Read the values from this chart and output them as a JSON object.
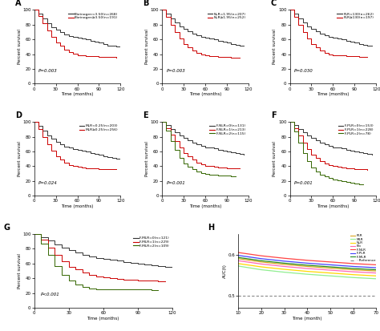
{
  "panel_labels": [
    "A",
    "B",
    "C",
    "D",
    "E",
    "F",
    "G",
    "H"
  ],
  "panels_ABC": {
    "A": {
      "legend": [
        "Fibrinogen<3.50(n=268)",
        "Fibrinogen≥3.50(n=191)"
      ],
      "colors": [
        "#333333",
        "#cc0000"
      ],
      "pval": "P=0.003",
      "group1_x": [
        0,
        6,
        12,
        18,
        24,
        30,
        36,
        42,
        48,
        54,
        60,
        66,
        72,
        78,
        84,
        90,
        96,
        102,
        108,
        114,
        120
      ],
      "group1_y": [
        100,
        95,
        88,
        82,
        77,
        73,
        70,
        67,
        65,
        63,
        62,
        61,
        60,
        58,
        57,
        56,
        54,
        52,
        51,
        50,
        49
      ],
      "group2_x": [
        0,
        6,
        12,
        18,
        24,
        30,
        36,
        42,
        48,
        54,
        60,
        66,
        72,
        78,
        84,
        90,
        96,
        102,
        108,
        114
      ],
      "group2_y": [
        100,
        92,
        82,
        72,
        63,
        56,
        51,
        46,
        43,
        41,
        39,
        38,
        37,
        37,
        37,
        36,
        36,
        36,
        36,
        35
      ]
    },
    "B": {
      "legend": [
        "NLR<1.95(n=207)",
        "NLR≥1.95(n=252)"
      ],
      "colors": [
        "#333333",
        "#cc0000"
      ],
      "pval": "P=0.003",
      "group1_x": [
        0,
        6,
        12,
        18,
        24,
        30,
        36,
        42,
        48,
        54,
        60,
        66,
        72,
        78,
        84,
        90,
        96,
        102,
        108,
        114
      ],
      "group1_y": [
        100,
        95,
        88,
        83,
        78,
        74,
        71,
        68,
        66,
        64,
        62,
        61,
        60,
        58,
        57,
        56,
        54,
        53,
        52,
        51
      ],
      "group2_x": [
        0,
        6,
        12,
        18,
        24,
        30,
        36,
        42,
        48,
        54,
        60,
        66,
        72,
        78,
        84,
        90,
        96,
        102,
        108
      ],
      "group2_y": [
        100,
        91,
        80,
        70,
        61,
        54,
        49,
        45,
        42,
        40,
        38,
        37,
        37,
        36,
        36,
        36,
        35,
        35,
        35
      ]
    },
    "C": {
      "legend": [
        "PLR<130(n=262)",
        "PLR≥130(n=197)"
      ],
      "colors": [
        "#333333",
        "#cc0000"
      ],
      "pval": "P=0.030",
      "group1_x": [
        0,
        6,
        12,
        18,
        24,
        30,
        36,
        42,
        48,
        54,
        60,
        66,
        72,
        78,
        84,
        90,
        96,
        102,
        108,
        114
      ],
      "group1_y": [
        100,
        95,
        88,
        83,
        78,
        74,
        71,
        68,
        66,
        64,
        62,
        61,
        60,
        58,
        57,
        56,
        54,
        53,
        52,
        51
      ],
      "group2_x": [
        0,
        6,
        12,
        18,
        24,
        30,
        36,
        42,
        48,
        54,
        60,
        66,
        72,
        78,
        84,
        90,
        96,
        102,
        108
      ],
      "group2_y": [
        100,
        91,
        80,
        70,
        61,
        54,
        49,
        45,
        42,
        40,
        39,
        38,
        38,
        37,
        37,
        37,
        36,
        36,
        36
      ]
    }
  },
  "panels_DEF": {
    "D": {
      "legend": [
        "MLR<0.25(n=203)",
        "MLR≥0.25(n=256)"
      ],
      "colors": [
        "#333333",
        "#cc0000"
      ],
      "pval": "P=0.024",
      "group1_x": [
        0,
        6,
        12,
        18,
        24,
        30,
        36,
        42,
        48,
        54,
        60,
        66,
        72,
        78,
        84,
        90,
        96,
        102,
        108,
        114,
        120
      ],
      "group1_y": [
        100,
        95,
        88,
        82,
        77,
        73,
        70,
        67,
        65,
        63,
        62,
        61,
        60,
        58,
        57,
        56,
        54,
        52,
        51,
        50,
        50
      ],
      "group2_x": [
        0,
        6,
        12,
        18,
        24,
        30,
        36,
        42,
        48,
        54,
        60,
        66,
        72,
        78,
        84,
        90,
        96,
        102,
        108,
        114
      ],
      "group2_y": [
        100,
        91,
        80,
        70,
        61,
        54,
        49,
        45,
        42,
        40,
        39,
        38,
        37,
        37,
        37,
        36,
        36,
        36,
        36,
        36
      ]
    },
    "E": {
      "legend": [
        "F-NLR=0(n=131)",
        "F-NLR=1(n=213)",
        "F-NLR=2(n=115)"
      ],
      "colors": [
        "#333333",
        "#cc0000",
        "#336600"
      ],
      "pval": "P=0.001",
      "group1_x": [
        0,
        6,
        12,
        18,
        24,
        30,
        36,
        42,
        48,
        54,
        60,
        66,
        72,
        78,
        84,
        90,
        96,
        102,
        108,
        114
      ],
      "group1_y": [
        100,
        96,
        91,
        86,
        82,
        78,
        75,
        72,
        70,
        68,
        66,
        65,
        64,
        62,
        61,
        60,
        59,
        58,
        57,
        56
      ],
      "group2_x": [
        0,
        6,
        12,
        18,
        24,
        30,
        36,
        42,
        48,
        54,
        60,
        66,
        72,
        78,
        84,
        90,
        96,
        102,
        108
      ],
      "group2_y": [
        100,
        92,
        83,
        74,
        65,
        58,
        53,
        49,
        45,
        43,
        41,
        40,
        39,
        38,
        38,
        37,
        37,
        37,
        37
      ],
      "group3_x": [
        0,
        6,
        12,
        18,
        24,
        30,
        36,
        42,
        48,
        54,
        60,
        66,
        72,
        78,
        84,
        90,
        96,
        102
      ],
      "group3_y": [
        100,
        88,
        74,
        62,
        51,
        44,
        39,
        36,
        33,
        31,
        30,
        29,
        28,
        27,
        27,
        27,
        26,
        26
      ]
    },
    "F": {
      "legend": [
        "F-PLR=0(n=153)",
        "F-PLR=1(n=228)",
        "F-PLR=2(n=78)"
      ],
      "colors": [
        "#333333",
        "#cc0000",
        "#336600"
      ],
      "pval": "P=0.001",
      "group1_x": [
        0,
        6,
        12,
        18,
        24,
        30,
        36,
        42,
        48,
        54,
        60,
        66,
        72,
        78,
        84,
        90,
        96,
        102,
        108,
        114
      ],
      "group1_y": [
        100,
        96,
        91,
        86,
        82,
        78,
        75,
        72,
        70,
        68,
        66,
        65,
        64,
        62,
        61,
        60,
        59,
        58,
        57,
        56
      ],
      "group2_x": [
        0,
        6,
        12,
        18,
        24,
        30,
        36,
        42,
        48,
        54,
        60,
        66,
        72,
        78,
        84,
        90,
        96,
        102,
        108
      ],
      "group2_y": [
        100,
        92,
        82,
        72,
        63,
        56,
        51,
        47,
        44,
        42,
        40,
        39,
        38,
        37,
        37,
        36,
        36,
        36,
        35
      ],
      "group3_x": [
        0,
        6,
        12,
        18,
        24,
        30,
        36,
        42,
        48,
        54,
        60,
        66,
        72,
        78,
        84,
        90,
        96,
        102
      ],
      "group3_y": [
        100,
        87,
        72,
        58,
        47,
        38,
        33,
        29,
        26,
        24,
        22,
        21,
        20,
        19,
        18,
        17,
        16,
        15
      ]
    }
  },
  "panel_G": {
    "legend": [
      "F-MLR=0(n=121)",
      "F-MLR=1(n=229)",
      "F-MLR=2(n=109)"
    ],
    "colors": [
      "#333333",
      "#cc0000",
      "#336600"
    ],
    "pval": "P<0.001",
    "group1_x": [
      0,
      6,
      12,
      18,
      24,
      30,
      36,
      42,
      48,
      54,
      60,
      66,
      72,
      78,
      84,
      90,
      96,
      102,
      108,
      114,
      120
    ],
    "group1_y": [
      100,
      96,
      91,
      86,
      82,
      78,
      75,
      72,
      70,
      68,
      66,
      65,
      64,
      62,
      61,
      60,
      59,
      58,
      57,
      56,
      55
    ],
    "group2_x": [
      0,
      6,
      12,
      18,
      24,
      30,
      36,
      42,
      48,
      54,
      60,
      66,
      72,
      78,
      84,
      90,
      96,
      102,
      108,
      114
    ],
    "group2_y": [
      100,
      92,
      82,
      72,
      63,
      56,
      52,
      48,
      45,
      43,
      41,
      40,
      39,
      38,
      38,
      37,
      37,
      37,
      36,
      36
    ],
    "group3_x": [
      0,
      6,
      12,
      18,
      24,
      30,
      36,
      42,
      48,
      54,
      60,
      66,
      72,
      78,
      84,
      90,
      96,
      102,
      108
    ],
    "group3_y": [
      100,
      87,
      72,
      57,
      45,
      37,
      32,
      28,
      26,
      25,
      25,
      25,
      25,
      25,
      25,
      25,
      25,
      24,
      24
    ]
  },
  "panel_H": {
    "time": [
      10,
      20,
      30,
      40,
      50,
      60,
      70
    ],
    "PLR": [
      0.59,
      0.582,
      0.576,
      0.571,
      0.567,
      0.563,
      0.56
    ],
    "MLR": [
      0.572,
      0.563,
      0.557,
      0.552,
      0.548,
      0.544,
      0.541
    ],
    "NLR": [
      0.578,
      0.57,
      0.564,
      0.559,
      0.555,
      0.551,
      0.548
    ],
    "Fib": [
      0.585,
      0.577,
      0.571,
      0.566,
      0.562,
      0.558,
      0.555
    ],
    "F-NLR": [
      0.605,
      0.597,
      0.591,
      0.586,
      0.582,
      0.578,
      0.575
    ],
    "F-PLR": [
      0.598,
      0.59,
      0.584,
      0.579,
      0.575,
      0.571,
      0.568
    ],
    "F-MLR": [
      0.593,
      0.585,
      0.579,
      0.574,
      0.57,
      0.566,
      0.563
    ],
    "Reference": [
      0.5,
      0.5,
      0.5,
      0.5,
      0.5,
      0.5,
      0.5
    ],
    "colors": {
      "PLR": "#DAA520",
      "MLR": "#90EE90",
      "NLR": "#FFD700",
      "Fib": "#FF69B4",
      "F-NLR": "#FF4444",
      "F-PLR": "#4444FF",
      "F-MLR": "#228B22",
      "Reference": "#888888"
    },
    "ylabel": "AUC(t)",
    "xlabel": "Time (month)",
    "ylim": [
      0.47,
      0.65
    ],
    "yticks": [
      0.5,
      0.6
    ],
    "xticks": [
      10,
      20,
      30,
      40,
      50,
      60,
      70
    ]
  },
  "km_xlabel": "Time (months)",
  "km_ylabel": "Percent survival",
  "km_xlim": [
    0,
    120
  ],
  "km_xticks": [
    0,
    30,
    60,
    90,
    120
  ],
  "km_ylim": [
    0,
    100
  ],
  "km_yticks": [
    0,
    20,
    40,
    60,
    80,
    100
  ]
}
